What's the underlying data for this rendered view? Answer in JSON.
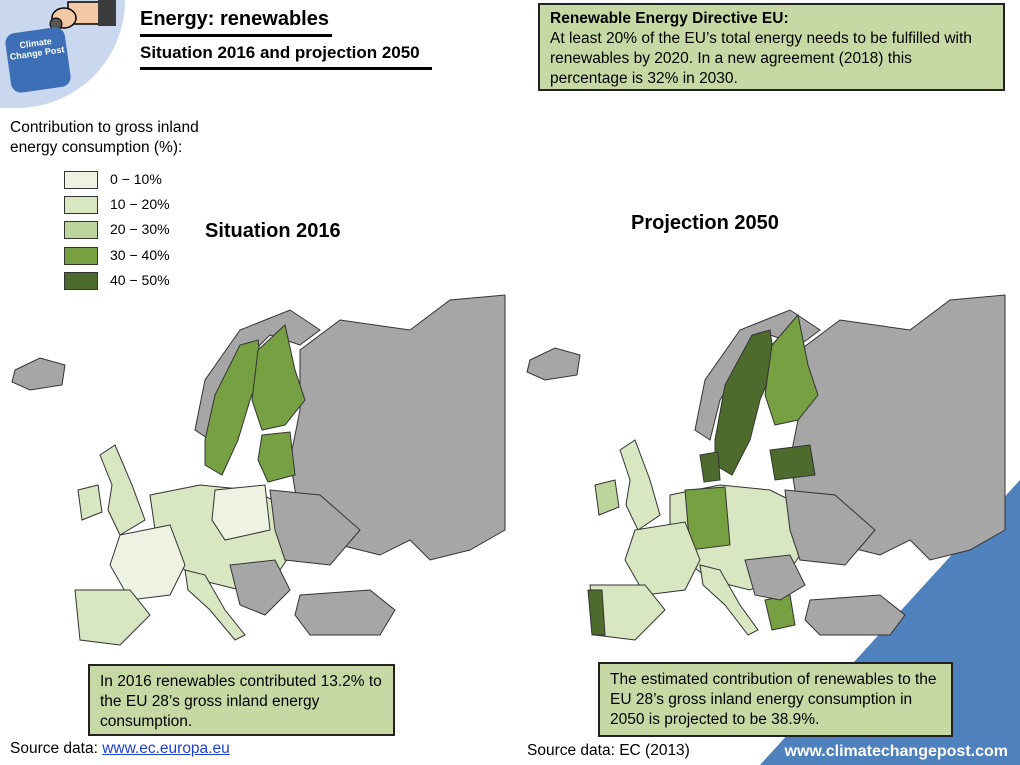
{
  "header": {
    "title": "Energy: renewables",
    "subtitle": "Situation 2016 and projection 2050",
    "logo_text": "Climate Change Post"
  },
  "directive": {
    "heading": "Renewable Energy Directive EU:",
    "body": "At least 20% of the EU’s total energy needs to be fulfilled with renewables by 2020. In  a new agreement (2018) this percentage is 32% in 2030."
  },
  "legend": {
    "title": "Contribution to gross inland energy consumption (%):",
    "items": [
      {
        "label": "0 − 10%",
        "color": "#eef2e3"
      },
      {
        "label": "10 − 20%",
        "color": "#d8e6c2"
      },
      {
        "label": "20 − 30%",
        "color": "#bcd59c"
      },
      {
        "label": "30 − 40%",
        "color": "#77a043"
      },
      {
        "label": "40 − 50%",
        "color": "#4d6b2c"
      }
    ]
  },
  "maps": {
    "left_label": "Situation 2016",
    "right_label": "Projection 2050"
  },
  "notes": {
    "left": "In 2016 renewables contributed 13.2% to the EU 28’s gross inland energy consumption.",
    "right": "The estimated contribution of renewables to the EU 28’s gross inland energy consumption in 2050 is projected to be 38.9%."
  },
  "sources": {
    "left_prefix": "Source data: ",
    "left_link": "www.ec.europa.eu",
    "right": "Source data: EC (2013)"
  },
  "site": "www.climatechangepost.com",
  "colors": {
    "non_eu": "#a6a6a6",
    "water": "#ffffff",
    "corner_accent": "#4f81bd"
  }
}
